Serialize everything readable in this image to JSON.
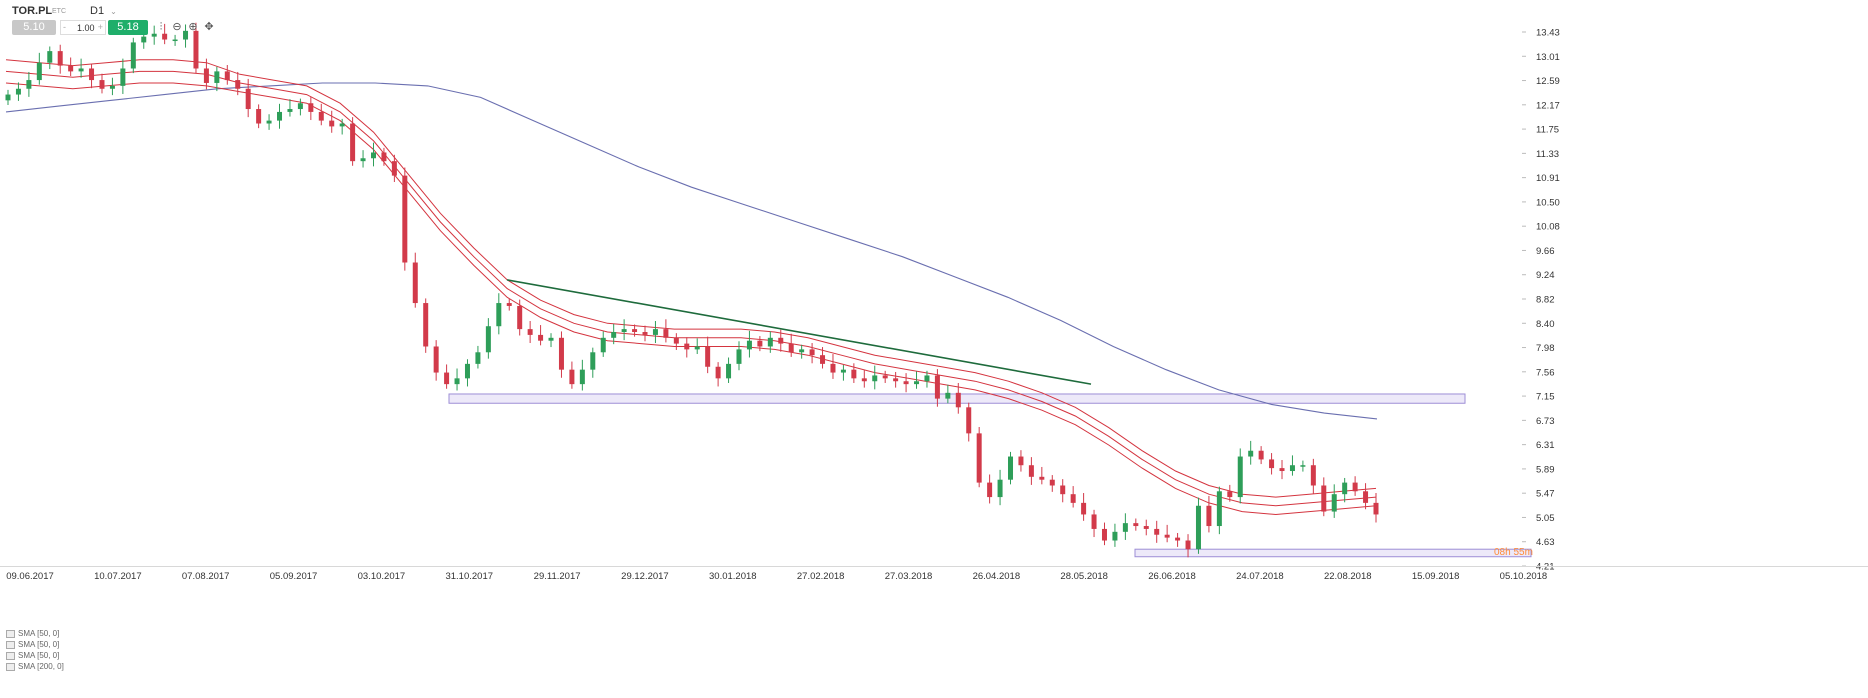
{
  "header": {
    "symbol": "TOR.PL",
    "symbol_sub": "ЕТС",
    "timeframe": "D1",
    "bid_price": "5.10",
    "lot_size": "1.00",
    "lot_minus": "-",
    "lot_plus": "+",
    "ask_price": "5.18",
    "tools": [
      "bar-chart-icon",
      "zoom-out-icon",
      "zoom-in-icon",
      "crosshair-icon"
    ]
  },
  "indicators": [
    {
      "label": "SMA [50, 0]"
    },
    {
      "label": "SMA [50, 0]"
    },
    {
      "label": "SMA [50, 0]"
    },
    {
      "label": "SMA [200, 0]"
    }
  ],
  "chart_data": {
    "type": "candlestick",
    "symbol": "TOR.PL",
    "timeframe": "D1",
    "y_ticks": [
      "13.43",
      "13.01",
      "12.59",
      "12.17",
      "11.75",
      "11.33",
      "10.91",
      "10.50",
      "10.08",
      "9.66",
      "9.24",
      "8.82",
      "8.40",
      "7.98",
      "7.56",
      "7.15",
      "6.73",
      "6.31",
      "5.89",
      "5.47",
      "5.05",
      "4.63",
      "4.21"
    ],
    "x_ticks": [
      "09.06.2017",
      "10.07.2017",
      "07.08.2017",
      "05.09.2017",
      "03.10.2017",
      "31.10.2017",
      "29.11.2017",
      "29.12.2017",
      "30.01.2018",
      "27.02.2018",
      "27.03.2018",
      "26.04.2018",
      "28.05.2018",
      "26.06.2018",
      "24.07.2018",
      "22.08.2018",
      "15.09.2018",
      "05.10.2018"
    ],
    "ylim": [
      4.21,
      13.43
    ],
    "timer_label": "08h 55m",
    "close_series": [
      12.35,
      12.45,
      12.6,
      12.9,
      13.1,
      12.85,
      12.75,
      12.8,
      12.6,
      12.45,
      12.5,
      12.8,
      13.25,
      13.35,
      13.4,
      13.3,
      13.3,
      13.45,
      12.8,
      12.55,
      12.75,
      12.6,
      12.45,
      12.1,
      11.85,
      11.9,
      12.05,
      12.1,
      12.2,
      12.05,
      11.9,
      11.8,
      11.85,
      11.2,
      11.25,
      11.35,
      11.2,
      10.95,
      9.45,
      8.75,
      8.0,
      7.55,
      7.35,
      7.45,
      7.7,
      7.9,
      8.35,
      8.75,
      8.7,
      8.3,
      8.2,
      8.1,
      8.15,
      7.6,
      7.35,
      7.6,
      7.9,
      8.15,
      8.25,
      8.3,
      8.25,
      8.2,
      8.3,
      8.15,
      8.05,
      7.95,
      8.0,
      7.65,
      7.45,
      7.7,
      7.95,
      8.1,
      8.0,
      8.15,
      8.05,
      7.9,
      7.95,
      7.85,
      7.7,
      7.55,
      7.6,
      7.45,
      7.4,
      7.5,
      7.45,
      7.4,
      7.35,
      7.4,
      7.5,
      7.1,
      7.2,
      6.95,
      6.5,
      5.65,
      5.4,
      5.7,
      6.1,
      5.95,
      5.75,
      5.7,
      5.6,
      5.45,
      5.3,
      5.1,
      4.85,
      4.65,
      4.8,
      4.95,
      4.9,
      4.85,
      4.75,
      4.7,
      4.65,
      4.5,
      5.25,
      4.9,
      5.5,
      5.4,
      6.1,
      6.2,
      6.05,
      5.9,
      5.85,
      5.95,
      5.95,
      5.6,
      5.15,
      5.45,
      5.65,
      5.5,
      5.3,
      5.1
    ],
    "sma_50_upper": [
      12.95,
      12.9,
      12.85,
      12.9,
      12.95,
      12.95,
      12.9,
      12.7,
      12.6,
      12.5,
      12.2,
      11.7,
      11.0,
      10.3,
      9.7,
      9.15,
      8.8,
      8.55,
      8.4,
      8.35,
      8.3,
      8.3,
      8.3,
      8.25,
      8.15,
      8.0,
      7.85,
      7.75,
      7.65,
      7.55,
      7.4,
      7.2,
      6.95,
      6.6,
      6.2,
      5.85,
      5.6,
      5.45,
      5.4,
      5.45,
      5.5,
      5.55
    ],
    "sma_50_mid": [
      12.75,
      12.7,
      12.65,
      12.7,
      12.75,
      12.75,
      12.7,
      12.55,
      12.45,
      12.35,
      12.05,
      11.55,
      10.85,
      10.15,
      9.55,
      9.0,
      8.65,
      8.4,
      8.25,
      8.2,
      8.15,
      8.15,
      8.15,
      8.1,
      8.0,
      7.85,
      7.7,
      7.6,
      7.5,
      7.4,
      7.25,
      7.05,
      6.8,
      6.45,
      6.05,
      5.7,
      5.45,
      5.3,
      5.25,
      5.3,
      5.35,
      5.4
    ],
    "sma_50_lower": [
      12.55,
      12.5,
      12.45,
      12.5,
      12.55,
      12.55,
      12.5,
      12.4,
      12.3,
      12.2,
      11.9,
      11.4,
      10.7,
      10.0,
      9.4,
      8.85,
      8.5,
      8.25,
      8.1,
      8.05,
      8.0,
      8.0,
      8.0,
      7.95,
      7.85,
      7.7,
      7.55,
      7.45,
      7.35,
      7.25,
      7.1,
      6.9,
      6.65,
      6.3,
      5.9,
      5.55,
      5.3,
      5.15,
      5.1,
      5.15,
      5.2,
      5.25
    ],
    "sma_200": [
      12.05,
      12.15,
      12.25,
      12.35,
      12.45,
      12.5,
      12.55,
      12.55,
      12.5,
      12.3,
      11.9,
      11.5,
      11.1,
      10.75,
      10.45,
      10.15,
      9.85,
      9.55,
      9.2,
      8.85,
      8.45,
      8.0,
      7.6,
      7.25,
      7.0,
      6.85,
      6.75
    ],
    "trendline_start_price": 9.15,
    "trendline_end_price": 7.35,
    "support_zone": [
      7.02,
      7.18
    ],
    "lower_zone": [
      4.37,
      4.5
    ]
  },
  "colors": {
    "bull": "#2e9e59",
    "bear": "#d23a4a",
    "sma50": "#d4343f",
    "sma200": "#6a6fb0",
    "trendline": "#1e6b3c",
    "zone_fill": "#e7e2f7",
    "zone_stroke": "#9d8ed6",
    "timer": "#ff8c3a"
  }
}
